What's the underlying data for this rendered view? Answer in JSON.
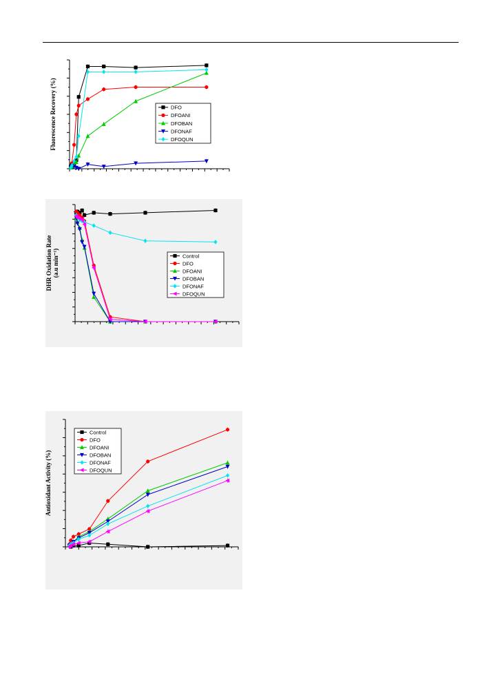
{
  "charts": [
    {
      "id": "fluorescence",
      "ylabel": "Fluorescence Recovery (%)",
      "ylabel_sub": "",
      "xlim": [
        0,
        70
      ],
      "ylim": [
        0,
        100
      ],
      "series": [
        {
          "name": "DFO",
          "color": "#000000",
          "marker": "square",
          "x": [
            0.5,
            1,
            2,
            3,
            4,
            8,
            15,
            29,
            60
          ],
          "y": [
            2,
            3,
            5,
            8,
            66,
            94,
            94,
            93,
            95
          ]
        },
        {
          "name": "DFOANI",
          "color": "#ff0000",
          "marker": "circle",
          "x": [
            1,
            2,
            3,
            4,
            8,
            15,
            29,
            60
          ],
          "y": [
            5,
            22,
            50,
            58,
            64,
            73,
            75,
            75
          ]
        },
        {
          "name": "DFOBAN",
          "color": "#00cc00",
          "marker": "triangle-up",
          "x": [
            0.5,
            1,
            2,
            3,
            4,
            8,
            15,
            29,
            60
          ],
          "y": [
            1,
            2,
            4,
            6,
            12,
            30,
            41,
            62,
            88
          ]
        },
        {
          "name": "DFONAF",
          "color": "#0000cc",
          "marker": "triangle-down",
          "x": [
            0.5,
            1,
            2,
            3,
            4,
            8,
            15,
            29,
            60
          ],
          "y": [
            1,
            3,
            2,
            1,
            0,
            4,
            2,
            5,
            7
          ]
        },
        {
          "name": "DFOQUN",
          "color": "#00e5ee",
          "marker": "diamond",
          "x": [
            0.5,
            1,
            2,
            3,
            4,
            8,
            15,
            29,
            60
          ],
          "y": [
            1,
            3,
            7,
            11,
            30,
            89,
            89,
            89,
            91
          ]
        }
      ]
    },
    {
      "id": "dhr",
      "ylabel": "DHR Oxidation Rate",
      "ylabel_sub": "(a.u min⁻¹)",
      "xlim": [
        0,
        70
      ],
      "ylim": [
        0,
        100
      ],
      "series": [
        {
          "name": "Control",
          "color": "#000000",
          "marker": "square",
          "x": [
            0.5,
            1,
            2,
            3,
            4,
            8,
            15,
            30,
            60
          ],
          "y": [
            93,
            94,
            93,
            95,
            91,
            93,
            92,
            93,
            95
          ]
        },
        {
          "name": "DFO",
          "color": "#ff0000",
          "marker": "circle",
          "x": [
            0.5,
            1,
            2,
            3,
            4,
            8,
            15,
            30,
            60
          ],
          "y": [
            94,
            93,
            91,
            89,
            86,
            48,
            4,
            0,
            0
          ]
        },
        {
          "name": "DFOANI",
          "color": "#00cc00",
          "marker": "triangle-up",
          "x": [
            0.5,
            1,
            2,
            3,
            4,
            8,
            15,
            30,
            60
          ],
          "y": [
            88,
            85,
            80,
            70,
            63,
            21,
            0,
            0,
            0
          ]
        },
        {
          "name": "DFOBAN",
          "color": "#0000cc",
          "marker": "triangle-down",
          "x": [
            0.5,
            1,
            2,
            3,
            4,
            8,
            15,
            30,
            60
          ],
          "y": [
            89,
            84,
            79,
            68,
            64,
            24,
            0,
            0,
            0
          ]
        },
        {
          "name": "DFONAF",
          "color": "#00e5ee",
          "marker": "diamond",
          "x": [
            0.5,
            1,
            2,
            3,
            4,
            8,
            15,
            30,
            60
          ],
          "y": [
            91,
            89,
            87,
            86,
            85,
            82,
            76,
            69,
            68
          ]
        },
        {
          "name": "DFOQUN",
          "color": "#ff00ff",
          "marker": "triangle-left",
          "x": [
            0.5,
            1,
            2,
            3,
            4,
            8,
            15,
            30,
            60
          ],
          "y": [
            90,
            89,
            88,
            87,
            83,
            46,
            2,
            0,
            0
          ]
        }
      ]
    },
    {
      "id": "antioxidant",
      "ylabel": "Antioxidant Activity (%)",
      "ylabel_sub": "",
      "xlim": [
        -1,
        64
      ],
      "ylim": [
        0,
        100
      ],
      "series": [
        {
          "name": "Control",
          "color": "#000000",
          "marker": "square",
          "x": [
            0.5,
            1,
            2,
            4,
            8,
            15,
            30,
            60
          ],
          "y": [
            1,
            0,
            1,
            1,
            3,
            2,
            0,
            1
          ]
        },
        {
          "name": "DFO",
          "color": "#ff0000",
          "marker": "circle",
          "x": [
            0.5,
            1,
            2,
            4,
            8,
            15,
            30,
            60
          ],
          "y": [
            2,
            5,
            8,
            10,
            14,
            36,
            67,
            92
          ]
        },
        {
          "name": "DFOANI",
          "color": "#00cc00",
          "marker": "triangle-up",
          "x": [
            0.5,
            1,
            2,
            4,
            8,
            15,
            30,
            60
          ],
          "y": [
            1,
            2,
            4,
            8,
            12,
            22,
            44,
            66
          ]
        },
        {
          "name": "DFOBAN",
          "color": "#0000cc",
          "marker": "triangle-down",
          "x": [
            0.5,
            1,
            2,
            4,
            8,
            15,
            30,
            60
          ],
          "y": [
            1,
            2,
            4,
            7,
            11,
            20,
            41,
            63
          ]
        },
        {
          "name": "DFONAF",
          "color": "#00e5ee",
          "marker": "diamond",
          "x": [
            0.5,
            1,
            2,
            4,
            8,
            15,
            30,
            60
          ],
          "y": [
            1,
            2,
            3,
            6,
            9,
            18,
            32,
            56
          ]
        },
        {
          "name": "DFOQUN",
          "color": "#ff00ff",
          "marker": "triangle-left",
          "x": [
            0.5,
            1,
            2,
            4,
            8,
            15,
            30,
            60
          ],
          "y": [
            0,
            1,
            2,
            3,
            4,
            12,
            28,
            52
          ]
        }
      ]
    }
  ]
}
